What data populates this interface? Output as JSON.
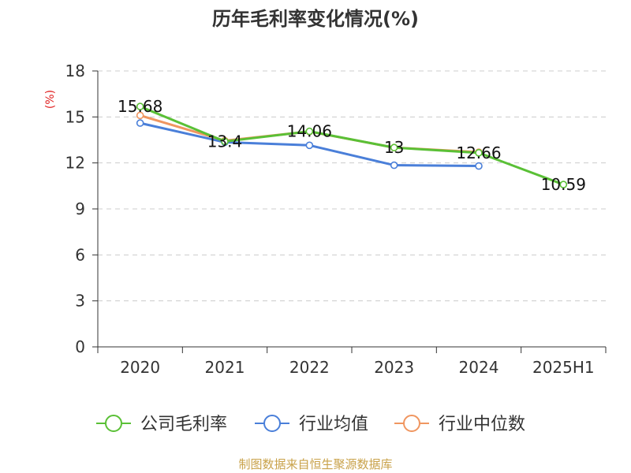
{
  "chart_data": {
    "type": "line",
    "title": "历年毛利率变化情况(%)",
    "ylabel": "(%)",
    "xlabel": "",
    "categories": [
      "2020",
      "2021",
      "2022",
      "2023",
      "2024",
      "2025H1"
    ],
    "ylim": [
      0,
      18
    ],
    "yticks": [
      0,
      3,
      6,
      9,
      12,
      15,
      18
    ],
    "grid": true,
    "legend_position": "bottom",
    "series": [
      {
        "name": "公司毛利率",
        "color": "#5ac036",
        "values": [
          15.68,
          13.4,
          14.06,
          13,
          12.66,
          10.59
        ],
        "labels": [
          "15.68",
          "13.4",
          "14.06",
          "13",
          "12.66",
          "10.59"
        ]
      },
      {
        "name": "行业均值",
        "color": "#4a7fd9",
        "values": [
          14.6,
          13.35,
          13.15,
          11.85,
          11.8,
          null
        ]
      },
      {
        "name": "行业中位数",
        "color": "#f09660",
        "values": [
          15.1,
          13.45,
          14.05,
          13.0,
          12.7,
          null
        ]
      }
    ]
  },
  "source": {
    "text": "制图数据来自恒生聚源数据库",
    "color": "#c9a24a"
  },
  "colors": {
    "axis": "#333333",
    "grid": "#cccccc",
    "ylabel": "#e02020"
  }
}
